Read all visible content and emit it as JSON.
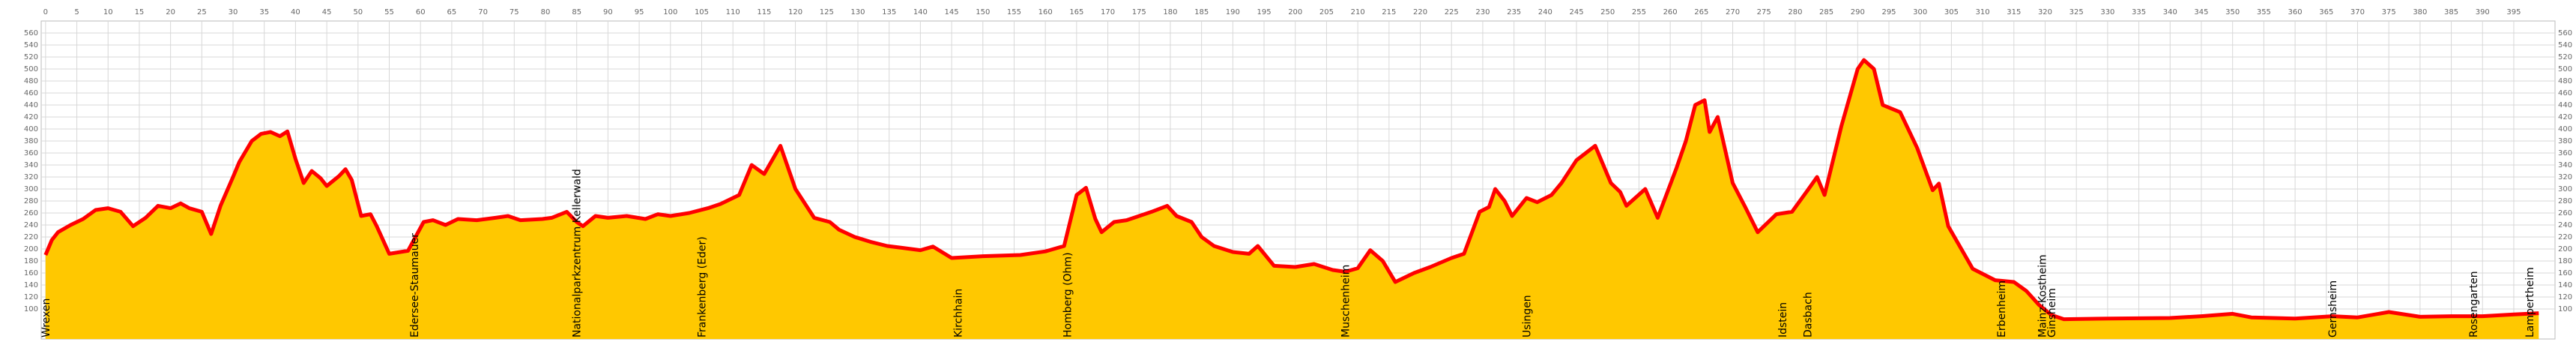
{
  "chart_data": {
    "type": "area",
    "x": [
      0,
      1,
      2,
      4,
      6,
      8,
      10,
      12,
      14,
      16,
      18,
      20,
      21.6,
      23,
      25,
      26.5,
      28,
      30,
      31,
      33,
      34.5,
      36,
      37.5,
      38.7,
      40,
      41.3,
      42.6,
      44,
      45,
      47,
      48,
      49,
      50.5,
      52,
      53,
      55,
      58,
      60.5,
      62,
      64,
      66,
      69,
      72,
      74,
      76,
      79.5,
      81,
      83.4,
      85,
      86,
      88,
      90,
      93,
      96,
      98,
      100,
      103,
      106,
      108,
      111,
      113,
      115,
      117.6,
      120,
      123,
      125.5,
      127,
      129.5,
      132,
      134.7,
      137,
      140,
      142,
      145,
      150,
      156,
      160,
      163,
      165,
      166.5,
      168,
      169,
      171,
      173,
      175,
      177,
      179.5,
      181,
      183.4,
      185,
      187,
      190,
      192.6,
      194,
      196.6,
      200,
      203,
      206,
      208,
      210,
      212,
      214,
      216,
      219,
      221.6,
      225,
      227,
      229.5,
      231,
      232,
      233.5,
      234.7,
      237,
      238.7,
      241,
      242.6,
      245,
      248,
      250.5,
      252,
      253,
      256,
      258,
      261,
      262.5,
      264,
      265.5,
      266.3,
      267.6,
      270,
      272,
      274,
      277,
      279.5,
      282,
      283.5,
      284.7,
      287.4,
      290,
      291,
      292.6,
      294,
      296.8,
      299.5,
      302,
      303,
      304.5,
      308.4,
      312,
      315,
      317,
      319,
      321,
      323,
      330,
      340,
      345,
      350,
      353,
      360,
      366,
      370,
      375,
      380,
      385,
      390,
      395,
      399
    ],
    "values": [
      190,
      215,
      228,
      240,
      250,
      265,
      268,
      262,
      238,
      252,
      272,
      268,
      276,
      268,
      262,
      225,
      272,
      320,
      345,
      380,
      392,
      395,
      388,
      396,
      350,
      310,
      330,
      318,
      305,
      322,
      333,
      315,
      255,
      258,
      238,
      192,
      197,
      245,
      248,
      240,
      250,
      248,
      252,
      255,
      248,
      250,
      252,
      262,
      245,
      238,
      255,
      252,
      255,
      250,
      258,
      255,
      260,
      268,
      275,
      290,
      340,
      325,
      372,
      300,
      252,
      245,
      232,
      220,
      212,
      205,
      202,
      198,
      204,
      185,
      188,
      190,
      196,
      205,
      290,
      302,
      250,
      228,
      245,
      248,
      255,
      262,
      272,
      255,
      245,
      220,
      205,
      195,
      192,
      205,
      172,
      170,
      175,
      165,
      162,
      168,
      198,
      180,
      145,
      160,
      170,
      185,
      192,
      262,
      270,
      300,
      280,
      255,
      285,
      278,
      290,
      310,
      348,
      372,
      310,
      295,
      272,
      300,
      252,
      335,
      380,
      440,
      448,
      395,
      420,
      310,
      270,
      228,
      258,
      262,
      298,
      320,
      290,
      405,
      500,
      515,
      500,
      440,
      428,
      369,
      298,
      309,
      238,
      167,
      148,
      145,
      130,
      107,
      90,
      83,
      84,
      85,
      88,
      92,
      86,
      84,
      88,
      86,
      95,
      87,
      88,
      88,
      91,
      93
    ],
    "color": "#ffc800",
    "line_color": "#ff0000",
    "xlim": [
      -0.7,
      401.6
    ],
    "ylim": [
      50,
      580
    ],
    "xticks": [
      0,
      5,
      10,
      15,
      20,
      25,
      30,
      35,
      40,
      45,
      50,
      55,
      60,
      65,
      70,
      75,
      80,
      85,
      90,
      95,
      100,
      105,
      110,
      115,
      120,
      125,
      130,
      135,
      140,
      145,
      150,
      155,
      160,
      165,
      170,
      175,
      180,
      185,
      190,
      195,
      200,
      205,
      210,
      215,
      220,
      225,
      230,
      235,
      240,
      245,
      250,
      255,
      260,
      265,
      270,
      275,
      280,
      285,
      290,
      295,
      300,
      305,
      310,
      315,
      320,
      325,
      330,
      335,
      340,
      345,
      350,
      355,
      360,
      365,
      370,
      375,
      380,
      385,
      390,
      395
    ],
    "yticks": [
      100,
      120,
      140,
      160,
      180,
      200,
      220,
      240,
      260,
      280,
      300,
      320,
      340,
      360,
      380,
      400,
      420,
      440,
      460,
      480,
      500,
      520,
      540,
      560
    ],
    "grid": true,
    "places": [
      {
        "name": "Wrexen",
        "x": 0
      },
      {
        "name": "Edersee-Staumauer",
        "x": 59
      },
      {
        "name": "Nationalparkzentrum Kellerwald",
        "x": 85
      },
      {
        "name": "Frankenberg (Eder)",
        "x": 105
      },
      {
        "name": "Kirchhain",
        "x": 146
      },
      {
        "name": "Homberg (Ohm)",
        "x": 163.5
      },
      {
        "name": "Muschenheim",
        "x": 208
      },
      {
        "name": "Usingen",
        "x": 237
      },
      {
        "name": "Idstein",
        "x": 278
      },
      {
        "name": "Dasbach",
        "x": 282
      },
      {
        "name": "Erbenheim",
        "x": 313
      },
      {
        "name": "Mainz-Kostheim",
        "x": 319.5
      },
      {
        "name": "Ginsheim",
        "x": 321
      },
      {
        "name": "Gernsheim",
        "x": 366
      },
      {
        "name": "Rosengarten",
        "x": 388.5
      },
      {
        "name": "Lampertheim",
        "x": 397.5
      }
    ]
  }
}
